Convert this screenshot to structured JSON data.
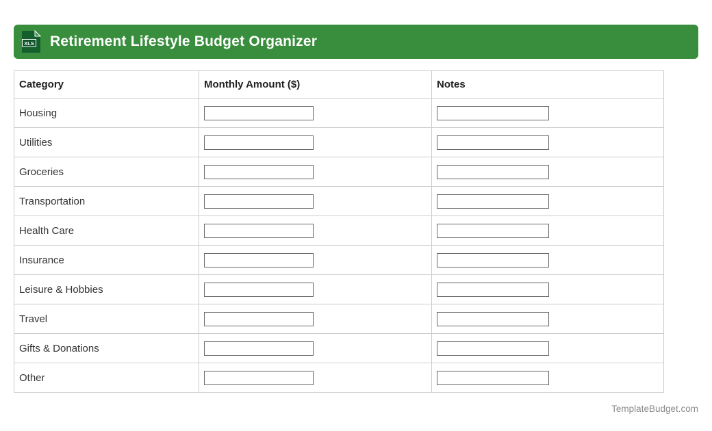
{
  "header": {
    "title": "Retirement Lifestyle Budget Organizer",
    "icon_label": "XLS",
    "banner_color": "#388e3c",
    "icon_body_color": "#14602c",
    "icon_fold_color": "#37964a",
    "icon_badge_color": "#0d5228"
  },
  "table": {
    "columns": [
      "Category",
      "Monthly Amount ($)",
      "Notes"
    ],
    "rows": [
      {
        "category": "Housing",
        "monthly_amount": "",
        "notes": ""
      },
      {
        "category": "Utilities",
        "monthly_amount": "",
        "notes": ""
      },
      {
        "category": "Groceries",
        "monthly_amount": "",
        "notes": ""
      },
      {
        "category": "Transportation",
        "monthly_amount": "",
        "notes": ""
      },
      {
        "category": "Health Care",
        "monthly_amount": "",
        "notes": ""
      },
      {
        "category": "Insurance",
        "monthly_amount": "",
        "notes": ""
      },
      {
        "category": "Leisure & Hobbies",
        "monthly_amount": "",
        "notes": ""
      },
      {
        "category": "Travel",
        "monthly_amount": "",
        "notes": ""
      },
      {
        "category": "Gifts & Donations",
        "monthly_amount": "",
        "notes": ""
      },
      {
        "category": "Other",
        "monthly_amount": "",
        "notes": ""
      }
    ],
    "border_color": "#cccccc"
  },
  "footer": {
    "site": "TemplateBudget.com"
  }
}
